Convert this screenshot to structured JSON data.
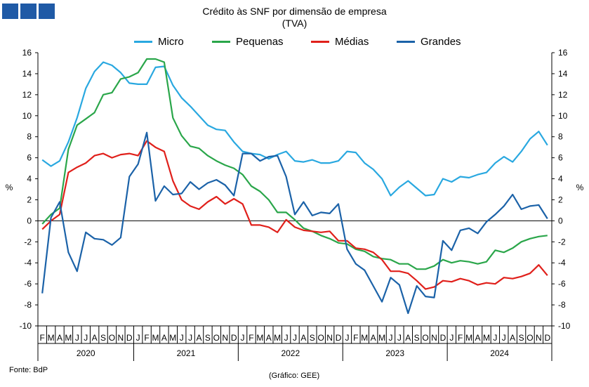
{
  "chart_data": {
    "type": "line",
    "title": "Crédito às SNF por dimensão de empresa",
    "subtitle": "(TVA)",
    "ylabel": "%",
    "ylabel_right": "%",
    "ylim": [
      -10,
      16
    ],
    "yticks": [
      -10,
      -8,
      -6,
      -4,
      -2,
      0,
      2,
      4,
      6,
      8,
      10,
      12,
      14,
      16
    ],
    "grid": false,
    "legend_position": "top",
    "month_labels": [
      "F",
      "M",
      "A",
      "M",
      "J",
      "J",
      "A",
      "S",
      "O",
      "N",
      "D",
      "J",
      "F",
      "M",
      "A",
      "M",
      "J",
      "J",
      "A",
      "S",
      "O",
      "N",
      "D",
      "J",
      "F",
      "M",
      "A",
      "M",
      "J",
      "J",
      "A",
      "S",
      "O",
      "N",
      "D",
      "J",
      "F",
      "M",
      "A",
      "M",
      "J",
      "J",
      "A",
      "S",
      "O",
      "N",
      "D",
      "J",
      "F",
      "M",
      "A",
      "M",
      "J",
      "J",
      "A",
      "S",
      "O",
      "N",
      "D"
    ],
    "year_labels": [
      "2020",
      "2021",
      "2022",
      "2023",
      "2024"
    ],
    "series": [
      {
        "name": "Micro",
        "color": "#29a8e0",
        "values": [
          5.8,
          5.2,
          5.7,
          7.5,
          9.8,
          12.6,
          14.2,
          15.1,
          14.8,
          14.1,
          13.1,
          13.0,
          13.0,
          14.6,
          14.7,
          12.9,
          11.7,
          10.9,
          10.0,
          9.1,
          8.7,
          8.6,
          7.5,
          6.6,
          6.4,
          6.3,
          5.9,
          6.3,
          6.6,
          5.7,
          5.6,
          5.8,
          5.5,
          5.5,
          5.7,
          6.6,
          6.5,
          5.5,
          4.9,
          4.0,
          2.4,
          3.2,
          3.8,
          3.1,
          2.4,
          2.5,
          4.0,
          3.7,
          4.2,
          4.1,
          4.4,
          4.6,
          5.5,
          6.1,
          5.6,
          6.6,
          7.8,
          8.5,
          7.2
        ]
      },
      {
        "name": "Pequenas",
        "color": "#2aa64a",
        "values": [
          -0.3,
          0.6,
          1.2,
          6.8,
          9.1,
          9.7,
          10.3,
          12.0,
          12.2,
          13.5,
          13.7,
          14.1,
          15.4,
          15.4,
          15.1,
          9.8,
          8.1,
          7.1,
          6.9,
          6.2,
          5.7,
          5.3,
          5.0,
          4.4,
          3.3,
          2.8,
          2.0,
          0.8,
          0.8,
          0.1,
          -0.7,
          -1.0,
          -1.4,
          -1.7,
          -2.1,
          -2.2,
          -2.7,
          -2.9,
          -3.4,
          -3.6,
          -3.7,
          -4.1,
          -4.1,
          -4.6,
          -4.6,
          -4.3,
          -3.7,
          -4.0,
          -3.8,
          -3.9,
          -4.1,
          -3.9,
          -2.8,
          -3.0,
          -2.6,
          -2.0,
          -1.7,
          -1.5,
          -1.4
        ]
      },
      {
        "name": "Médias",
        "color": "#e0201b",
        "values": [
          -0.8,
          0.0,
          0.6,
          4.6,
          5.1,
          5.5,
          6.2,
          6.4,
          6.0,
          6.3,
          6.4,
          6.2,
          7.6,
          7.0,
          6.6,
          3.8,
          2.0,
          1.4,
          1.1,
          1.8,
          2.3,
          1.6,
          2.1,
          1.6,
          -0.4,
          -0.4,
          -0.6,
          -1.1,
          0.1,
          -0.6,
          -0.9,
          -1.0,
          -1.1,
          -1.0,
          -1.9,
          -1.9,
          -2.6,
          -2.7,
          -3.0,
          -3.7,
          -4.8,
          -4.8,
          -5.0,
          -5.7,
          -6.5,
          -6.3,
          -5.7,
          -5.8,
          -5.5,
          -5.7,
          -6.1,
          -5.9,
          -6.0,
          -5.4,
          -5.5,
          -5.3,
          -5.0,
          -4.2,
          -5.2
        ]
      },
      {
        "name": "Grandes",
        "color": "#1b62a8",
        "values": [
          -6.9,
          0.3,
          1.8,
          -3.0,
          -4.8,
          -1.1,
          -1.7,
          -1.8,
          -2.3,
          -1.6,
          4.2,
          5.4,
          8.4,
          1.9,
          3.3,
          2.5,
          2.6,
          3.7,
          3.0,
          3.6,
          3.9,
          3.4,
          2.4,
          6.4,
          6.4,
          5.7,
          6.1,
          6.2,
          4.2,
          0.6,
          1.8,
          0.5,
          0.8,
          0.7,
          1.6,
          -2.7,
          -4.1,
          -4.7,
          -6.2,
          -7.7,
          -5.4,
          -6.1,
          -8.8,
          -6.2,
          -7.2,
          -7.3,
          -1.9,
          -2.8,
          -0.9,
          -0.7,
          -1.2,
          -0.1,
          0.6,
          1.4,
          2.5,
          1.1,
          1.4,
          1.5,
          0.2
        ]
      }
    ]
  },
  "source_note": "Fonte: BdP",
  "credit_note": "(Gráfico: GEE)"
}
